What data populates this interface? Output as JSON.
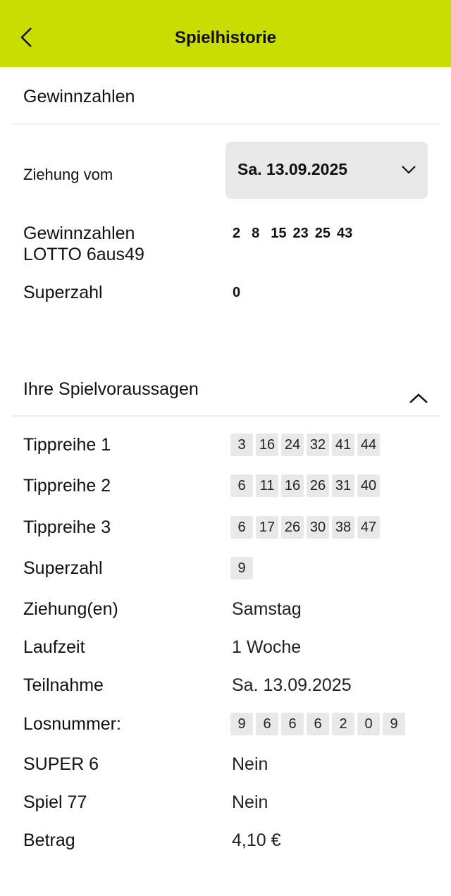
{
  "header": {
    "title": "Spielhistorie"
  },
  "winning": {
    "section_title": "Gewinnzahlen",
    "draw_label": "Ziehung vom",
    "draw_date": "Sa. 13.09.2025",
    "numbers_label_1": "Gewinnzahlen",
    "numbers_label_2": "LOTTO 6aus49",
    "numbers": [
      "2",
      "8",
      "15",
      "23",
      "25",
      "43"
    ],
    "superzahl_label": "Superzahl",
    "superzahl": "0"
  },
  "predictions": {
    "section_title": "Ihre Spielvoraussagen",
    "rows": [
      {
        "label": "Tippreihe 1",
        "chips": [
          "3",
          "16",
          "24",
          "32",
          "41",
          "44"
        ]
      },
      {
        "label": "Tippreihe 2",
        "chips": [
          "6",
          "11",
          "16",
          "26",
          "31",
          "40"
        ]
      },
      {
        "label": "Tippreihe 3",
        "chips": [
          "6",
          "17",
          "26",
          "30",
          "38",
          "47"
        ]
      },
      {
        "label": "Superzahl",
        "chips": [
          "9"
        ]
      }
    ],
    "details": [
      {
        "label": "Ziehung(en)",
        "value": "Samstag"
      },
      {
        "label": "Laufzeit",
        "value": "1 Woche"
      },
      {
        "label": "Teilnahme",
        "value": "Sa. 13.09.2025"
      }
    ],
    "losnummer_label": "Losnummer:",
    "losnummer": [
      "9",
      "6",
      "6",
      "6",
      "2",
      "0",
      "9"
    ],
    "details2": [
      {
        "label": "SUPER 6",
        "value": "Nein"
      },
      {
        "label": "Spiel 77",
        "value": "Nein"
      },
      {
        "label": "Betrag",
        "value": "4,10 €"
      }
    ]
  }
}
